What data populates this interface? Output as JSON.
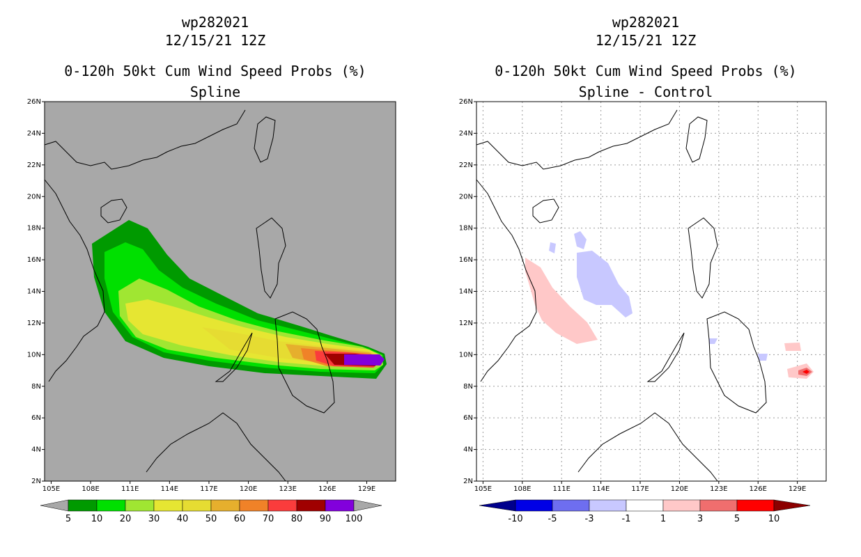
{
  "panels": [
    {
      "id": "left",
      "title1": "wp282021",
      "title2": "12/15/21 12Z",
      "title3": "0-120h 50kt Cum Wind Speed Probs (%)",
      "title4": "Spline",
      "background": "#a8a8a8",
      "colorbar": {
        "labels": [
          "5",
          "10",
          "20",
          "30",
          "40",
          "50",
          "60",
          "70",
          "80",
          "90",
          "100"
        ],
        "colors": [
          "#009a00",
          "#00e000",
          "#a0e632",
          "#e6e632",
          "#e6dc32",
          "#e6af2d",
          "#f08228",
          "#fa3c3c",
          "#a00000",
          "#8200dc"
        ],
        "end_color": "#a8a8a8"
      }
    },
    {
      "id": "right",
      "title1": "wp282021",
      "title2": "12/15/21 12Z",
      "title3": "0-120h 50kt Cum Wind Speed Probs (%)",
      "title4": "Spline - Control",
      "background": "#ffffff",
      "colorbar": {
        "labels": [
          "-10",
          "-5",
          "-3",
          "-1",
          "1",
          "3",
          "5",
          "10"
        ],
        "colors": [
          "#0000e6",
          "#6e6ef0",
          "#c8c8ff",
          "#ffffff",
          "#ffc8c8",
          "#f06e6e",
          "#ff0000"
        ],
        "end_left": "#00008c",
        "end_right": "#8c0000"
      }
    }
  ],
  "axes": {
    "lat_ticks": [
      "2N",
      "4N",
      "6N",
      "8N",
      "10N",
      "12N",
      "14N",
      "16N",
      "18N",
      "20N",
      "22N",
      "24N",
      "26N"
    ],
    "lon_ticks": [
      "105E",
      "108E",
      "111E",
      "114E",
      "117E",
      "120E",
      "123E",
      "126E",
      "129E"
    ]
  }
}
